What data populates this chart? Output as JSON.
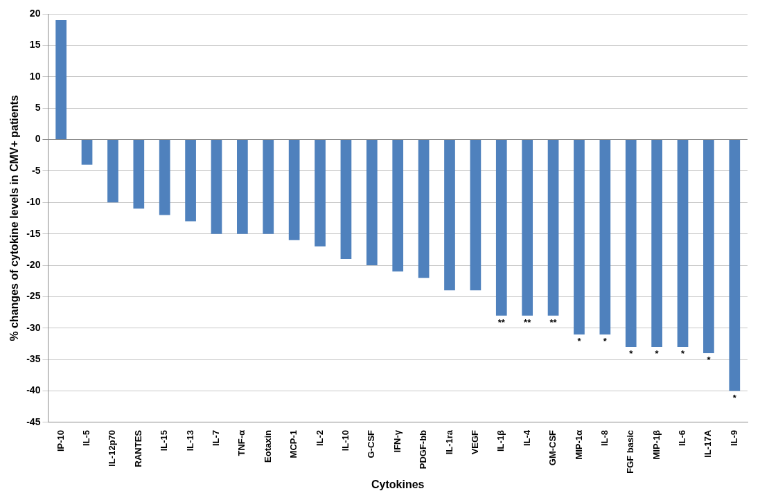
{
  "chart_data": {
    "type": "bar",
    "xlabel": "Cytokines",
    "ylabel": "% changes of cytokine levels in CMV+ patients",
    "categories": [
      "IP-10",
      "IL-5",
      "IL-12p70",
      "RANTES",
      "IL-15",
      "IL-13",
      "IL-7",
      "TNF-α",
      "Eotaxin",
      "MCP-1",
      "IL-2",
      "IL-10",
      "G-CSF",
      "IFN-γ",
      "PDGF-bb",
      "IL-1ra",
      "VEGF",
      "IL-1β",
      "IL-4",
      "GM-CSF",
      "MIP-1α",
      "IL-8",
      "FGF basic",
      "MIP-1β",
      "IL-6",
      "IL-17A",
      "IL-9"
    ],
    "values": [
      19,
      -4,
      -10,
      -11,
      -12,
      -13,
      -15,
      -15,
      -15,
      -16,
      -17,
      -19,
      -20,
      -21,
      -22,
      -24,
      -24,
      -28,
      -28,
      -28,
      -31,
      -31,
      -33,
      -33,
      -33,
      -34,
      -40
    ],
    "color": "#4f81bd",
    "ylim": [
      -45,
      20
    ],
    "yticks": [
      -45,
      -40,
      -35,
      -30,
      -25,
      -20,
      -15,
      -10,
      -5,
      0,
      5,
      10,
      15,
      20
    ],
    "grid": "y",
    "annotations": [
      {
        "text": "**",
        "x": "IL-1β",
        "y": -28
      },
      {
        "text": "**",
        "x": "IL-4",
        "y": -28
      },
      {
        "text": "**",
        "x": "GM-CSF",
        "y": -28
      },
      {
        "text": "*",
        "x": "MIP-1α",
        "y": -31
      },
      {
        "text": "*",
        "x": "IL-8",
        "y": -31
      },
      {
        "text": "*",
        "x": "FGF basic",
        "y": -33
      },
      {
        "text": "*",
        "x": "MIP-1β",
        "y": -33
      },
      {
        "text": "*",
        "x": "IL-6",
        "y": -33
      },
      {
        "text": "*",
        "x": "IL-17A",
        "y": -34
      },
      {
        "text": "*",
        "x": "IL-9",
        "y": -40
      }
    ]
  }
}
